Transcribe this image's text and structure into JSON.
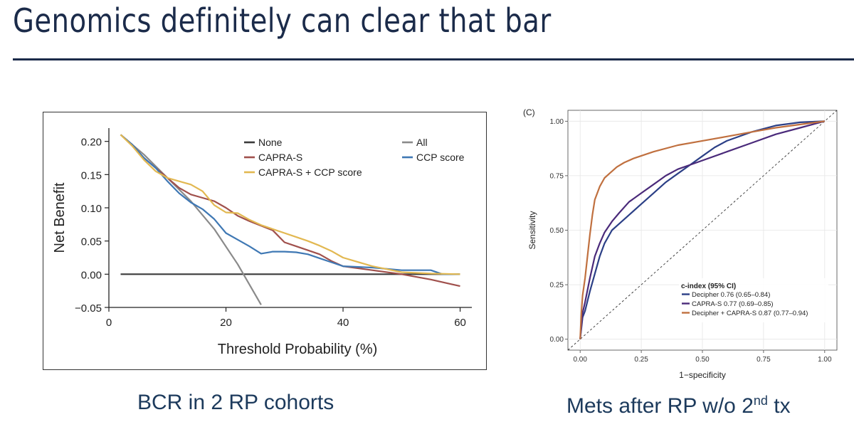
{
  "slide": {
    "title": "Genomics definitely can clear that bar",
    "caption_left": "BCR in 2 RP cohorts",
    "caption_right_main": "Mets after RP w/o 2",
    "caption_right_sup": "nd",
    "caption_right_tail": " tx"
  },
  "chart_data": [
    {
      "type": "line",
      "title": "",
      "xlabel": "Threshold Probability (%)",
      "ylabel": "Net Benefit",
      "xlim": [
        0,
        62
      ],
      "ylim": [
        -0.05,
        0.22
      ],
      "xticks": [
        0,
        20,
        40,
        60
      ],
      "xtick_labels": [
        "0",
        "20",
        "40",
        "60"
      ],
      "yticks": [
        -0.05,
        0,
        0.05,
        0.1,
        0.15,
        0.2
      ],
      "ytick_labels": [
        "−0.05",
        "0.00",
        "0.05",
        "0.10",
        "0.15",
        "0.20"
      ],
      "grid": false,
      "legend_position": "top",
      "series": [
        {
          "name": "None",
          "color": "#3a3a3a",
          "x": [
            2,
            60
          ],
          "y": [
            0,
            0
          ]
        },
        {
          "name": "All",
          "color": "#8a8a8a",
          "x": [
            2,
            6,
            10,
            14,
            18,
            22,
            26
          ],
          "y": [
            0.21,
            0.18,
            0.145,
            0.11,
            0.068,
            0.015,
            -0.046
          ]
        },
        {
          "name": "CAPRA-S",
          "color": "#a0504c",
          "x": [
            2,
            4,
            6,
            8,
            10,
            12,
            14,
            16,
            18,
            20,
            22,
            24,
            26,
            28,
            30,
            32,
            34,
            36,
            38,
            40,
            45,
            50,
            55,
            60
          ],
          "y": [
            0.21,
            0.195,
            0.175,
            0.16,
            0.145,
            0.13,
            0.12,
            0.115,
            0.11,
            0.1,
            0.088,
            0.08,
            0.073,
            0.066,
            0.048,
            0.042,
            0.036,
            0.03,
            0.02,
            0.012,
            0.006,
            0.0,
            -0.008,
            -0.018
          ]
        },
        {
          "name": "CCP score",
          "color": "#3f78b4",
          "x": [
            2,
            4,
            6,
            8,
            10,
            12,
            14,
            16,
            18,
            20,
            22,
            24,
            26,
            28,
            30,
            32,
            34,
            36,
            38,
            40,
            45,
            50,
            55,
            57,
            60
          ],
          "y": [
            0.21,
            0.195,
            0.175,
            0.16,
            0.14,
            0.122,
            0.108,
            0.098,
            0.083,
            0.062,
            0.052,
            0.042,
            0.031,
            0.034,
            0.034,
            0.033,
            0.03,
            0.024,
            0.018,
            0.012,
            0.01,
            0.006,
            0.006,
            0.0,
            0.0
          ]
        },
        {
          "name": "CAPRA-S + CCP score",
          "color": "#e2b851",
          "x": [
            2,
            4,
            6,
            8,
            10,
            12,
            14,
            16,
            18,
            20,
            22,
            24,
            26,
            28,
            30,
            32,
            34,
            36,
            38,
            40,
            45,
            50,
            55,
            60
          ],
          "y": [
            0.21,
            0.193,
            0.172,
            0.155,
            0.145,
            0.14,
            0.135,
            0.125,
            0.104,
            0.093,
            0.092,
            0.082,
            0.074,
            0.068,
            0.062,
            0.056,
            0.05,
            0.043,
            0.035,
            0.025,
            0.012,
            0.003,
            0.001,
            0.0
          ]
        }
      ]
    },
    {
      "type": "line",
      "title": "",
      "panel_label": "(C)",
      "xlabel": "1−specificity",
      "ylabel": "Sensitivity",
      "xlim": [
        -0.05,
        1.05
      ],
      "ylim": [
        -0.05,
        1.05
      ],
      "xticks": [
        0,
        0.25,
        0.5,
        0.75,
        1
      ],
      "xtick_labels": [
        "0.00",
        "0.25",
        "0.50",
        "0.75",
        "1.00"
      ],
      "yticks": [
        0,
        0.25,
        0.5,
        0.75,
        1
      ],
      "ytick_labels": [
        "0.00",
        "0.25",
        "0.50",
        "0.75",
        "1.00"
      ],
      "grid": true,
      "reference_line": {
        "x": [
          -0.05,
          1.05
        ],
        "y": [
          -0.05,
          1.05
        ]
      },
      "legend_title": "c-index (95% CI)",
      "legend_position": "bottom-right",
      "series": [
        {
          "name": "Decipher 0.76 (0.65–0.84)",
          "color": "#2b3f86",
          "x": [
            0,
            0.01,
            0.02,
            0.04,
            0.06,
            0.08,
            0.1,
            0.13,
            0.16,
            0.2,
            0.25,
            0.3,
            0.35,
            0.4,
            0.45,
            0.5,
            0.55,
            0.6,
            0.7,
            0.8,
            0.9,
            1
          ],
          "y": [
            0,
            0.1,
            0.13,
            0.22,
            0.3,
            0.38,
            0.44,
            0.5,
            0.53,
            0.57,
            0.62,
            0.67,
            0.72,
            0.76,
            0.8,
            0.84,
            0.88,
            0.91,
            0.95,
            0.98,
            0.995,
            1
          ]
        },
        {
          "name": "CAPRA-S 0.77 (0.69–0.85)",
          "color": "#4a2a7a",
          "x": [
            0,
            0.01,
            0.02,
            0.04,
            0.06,
            0.08,
            0.1,
            0.13,
            0.16,
            0.2,
            0.25,
            0.3,
            0.35,
            0.4,
            0.45,
            0.5,
            0.6,
            0.7,
            0.8,
            0.9,
            1
          ],
          "y": [
            0,
            0.12,
            0.17,
            0.28,
            0.38,
            0.44,
            0.49,
            0.54,
            0.58,
            0.63,
            0.67,
            0.71,
            0.75,
            0.78,
            0.8,
            0.82,
            0.86,
            0.9,
            0.94,
            0.97,
            1
          ]
        },
        {
          "name": "Decipher + CAPRA-S 0.87 (0.77–0.94)",
          "color": "#c0703f",
          "x": [
            0,
            0.005,
            0.01,
            0.02,
            0.03,
            0.04,
            0.05,
            0.06,
            0.08,
            0.1,
            0.12,
            0.15,
            0.18,
            0.22,
            0.3,
            0.4,
            0.5,
            0.6,
            0.7,
            0.8,
            0.9,
            1
          ],
          "y": [
            0,
            0.12,
            0.2,
            0.28,
            0.38,
            0.48,
            0.57,
            0.64,
            0.7,
            0.74,
            0.76,
            0.79,
            0.81,
            0.83,
            0.86,
            0.89,
            0.91,
            0.93,
            0.95,
            0.97,
            0.985,
            1
          ]
        }
      ]
    }
  ]
}
